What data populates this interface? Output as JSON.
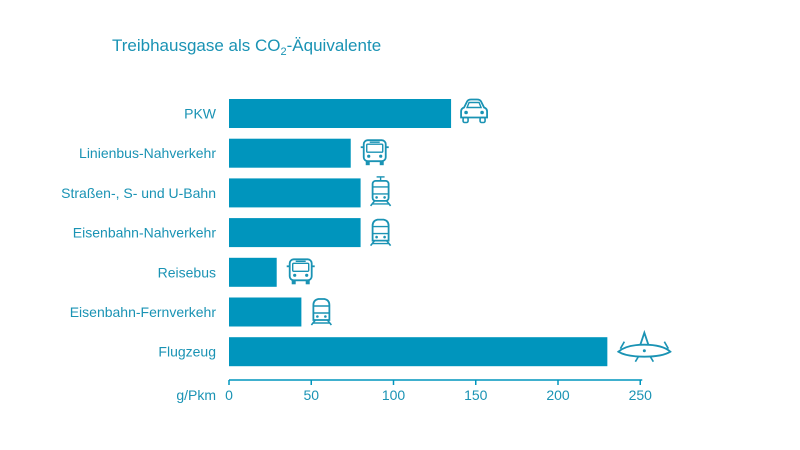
{
  "title": {
    "prefix": "Treibhausgase als CO",
    "subscript": "2",
    "suffix": "-Äquivalente"
  },
  "colors": {
    "bar": "#0095bd",
    "text": "#1a93b4",
    "icon": "#1a93b4"
  },
  "chart_data": {
    "type": "bar",
    "orientation": "horizontal",
    "title": "Treibhausgase als CO2-Äquivalente",
    "xlabel": "g/Pkm",
    "xlim": [
      0,
      250
    ],
    "xticks": [
      0,
      50,
      100,
      150,
      200,
      250
    ],
    "grid": false,
    "categories": [
      "PKW",
      "Linienbus-Nahverkehr",
      "Straßen-, S- und U-Bahn",
      "Eisenbahn-Nahverkehr",
      "Reisebus",
      "Eisenbahn-Fernverkehr",
      "Flugzeug"
    ],
    "values": [
      135,
      74,
      80,
      80,
      29,
      44,
      230
    ],
    "icons": [
      "car-icon",
      "bus-icon",
      "tram-icon",
      "train-icon",
      "bus-icon",
      "train-icon",
      "airplane-icon"
    ]
  }
}
